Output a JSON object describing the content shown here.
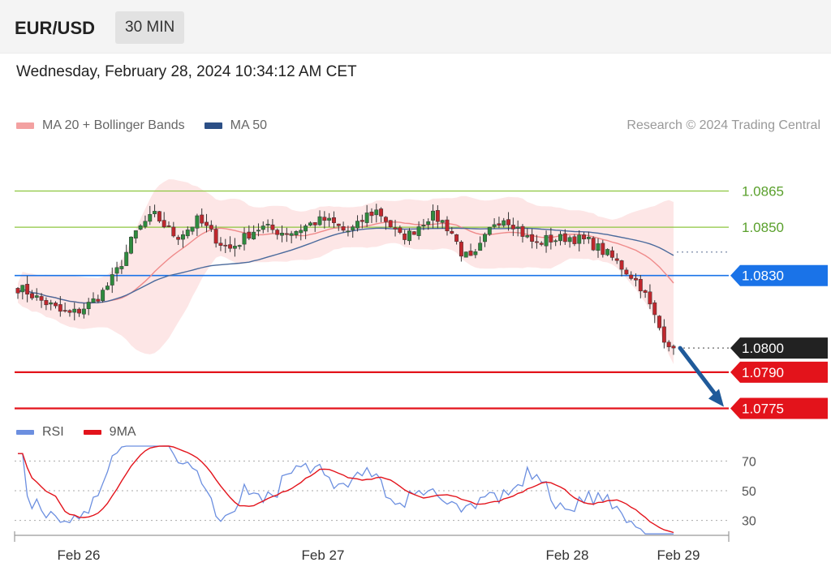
{
  "header": {
    "symbol": "EUR/USD",
    "timeframe": "30 MIN",
    "timestamp": "Wednesday, February 28, 2024 10:34:12 AM CET"
  },
  "legend": {
    "ma20_label": "MA 20 + Bollinger Bands",
    "ma50_label": "MA 50",
    "credit": "Research © 2024 Trading Central",
    "rsi_label": "RSI",
    "rsi_ma_label": "9MA"
  },
  "colors": {
    "resistance": "#8dc63f",
    "pivot": "#1a73e8",
    "support": "#e3131b",
    "last": "#222222",
    "arrow": "#1f5a9a",
    "ma50": "#4a6a9c",
    "ma20": "#ef8a8a",
    "band": "#fde3e3",
    "rsi": "#6c8fe0",
    "rsi_ma": "#e3131b"
  },
  "chart_data": [
    {
      "type": "candlestick",
      "series": [
        {
          "name": "MA 20 + Bollinger Bands"
        },
        {
          "name": "MA 50"
        }
      ],
      "ylim": [
        1.07735,
        1.0889
      ],
      "x_ticks": [
        "Feb 26",
        "Feb 27",
        "Feb 28",
        "Feb 29"
      ],
      "levels": [
        {
          "label": "1.0865",
          "value": 1.0865,
          "kind": "resistance"
        },
        {
          "label": "1.0850",
          "value": 1.085,
          "kind": "resistance"
        },
        {
          "label": "1.0830",
          "value": 1.083,
          "kind": "pivot"
        },
        {
          "label": "1.0800",
          "value": 1.08,
          "kind": "last"
        },
        {
          "label": "1.0790",
          "value": 1.079,
          "kind": "support"
        },
        {
          "label": "1.0775",
          "value": 1.0775,
          "kind": "support"
        }
      ],
      "close_path": [
        1.0825,
        1.0823,
        1.082,
        1.0818,
        1.0815,
        1.0814,
        1.0816,
        1.0819,
        1.0823,
        1.0829,
        1.0837,
        1.0847,
        1.0852,
        1.0855,
        1.085,
        1.0846,
        1.0849,
        1.0853,
        1.0849,
        1.0844,
        1.0841,
        1.0844,
        1.0848,
        1.085,
        1.0849,
        1.0848,
        1.0848,
        1.085,
        1.0852,
        1.0853,
        1.0851,
        1.0848,
        1.085,
        1.0855,
        1.0857,
        1.0852,
        1.0846,
        1.0847,
        1.0851,
        1.0855,
        1.0853,
        1.0848,
        1.0839,
        1.0836,
        1.0844,
        1.0852,
        1.0854,
        1.0851,
        1.0846,
        1.0843,
        1.0845,
        1.0845,
        1.0846,
        1.0845,
        1.0844,
        1.0841,
        1.0838,
        1.0834,
        1.083,
        1.0825,
        1.0815,
        1.0805,
        1.08
      ]
    },
    {
      "type": "line",
      "series": [
        {
          "name": "RSI"
        },
        {
          "name": "9MA"
        }
      ],
      "ylim": [
        20,
        80
      ],
      "y_ticks": [
        70,
        50,
        30
      ]
    }
  ]
}
